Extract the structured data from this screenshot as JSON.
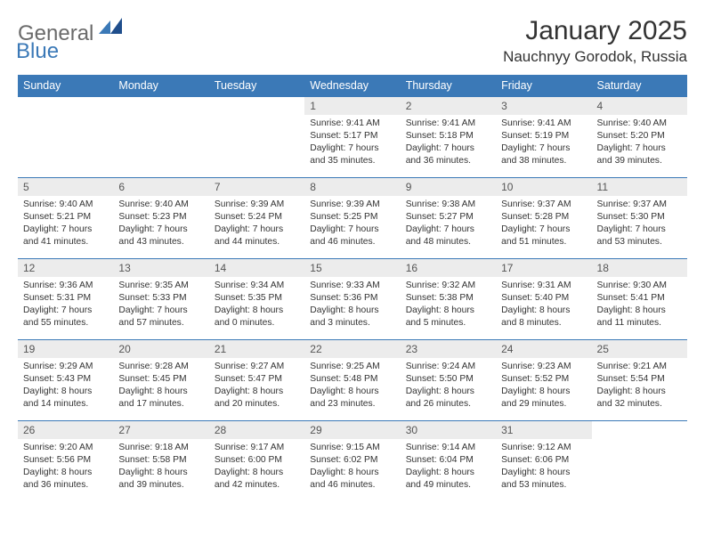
{
  "brand": {
    "general": "General",
    "blue": "Blue"
  },
  "title": "January 2025",
  "location": "Nauchnyy Gorodok, Russia",
  "theme": {
    "header_bg": "#3b79b7",
    "header_fg": "#ffffff",
    "daynum_bg": "#ececec",
    "border_color": "#3b79b7",
    "page_bg": "#ffffff",
    "text_color": "#333333"
  },
  "weekdays": [
    "Sunday",
    "Monday",
    "Tuesday",
    "Wednesday",
    "Thursday",
    "Friday",
    "Saturday"
  ],
  "weeks": [
    [
      {
        "n": "",
        "sr": "",
        "ss": "",
        "d1": "",
        "d2": "",
        "empty": true
      },
      {
        "n": "",
        "sr": "",
        "ss": "",
        "d1": "",
        "d2": "",
        "empty": true
      },
      {
        "n": "",
        "sr": "",
        "ss": "",
        "d1": "",
        "d2": "",
        "empty": true
      },
      {
        "n": "1",
        "sr": "Sunrise: 9:41 AM",
        "ss": "Sunset: 5:17 PM",
        "d1": "Daylight: 7 hours",
        "d2": "and 35 minutes."
      },
      {
        "n": "2",
        "sr": "Sunrise: 9:41 AM",
        "ss": "Sunset: 5:18 PM",
        "d1": "Daylight: 7 hours",
        "d2": "and 36 minutes."
      },
      {
        "n": "3",
        "sr": "Sunrise: 9:41 AM",
        "ss": "Sunset: 5:19 PM",
        "d1": "Daylight: 7 hours",
        "d2": "and 38 minutes."
      },
      {
        "n": "4",
        "sr": "Sunrise: 9:40 AM",
        "ss": "Sunset: 5:20 PM",
        "d1": "Daylight: 7 hours",
        "d2": "and 39 minutes."
      }
    ],
    [
      {
        "n": "5",
        "sr": "Sunrise: 9:40 AM",
        "ss": "Sunset: 5:21 PM",
        "d1": "Daylight: 7 hours",
        "d2": "and 41 minutes."
      },
      {
        "n": "6",
        "sr": "Sunrise: 9:40 AM",
        "ss": "Sunset: 5:23 PM",
        "d1": "Daylight: 7 hours",
        "d2": "and 43 minutes."
      },
      {
        "n": "7",
        "sr": "Sunrise: 9:39 AM",
        "ss": "Sunset: 5:24 PM",
        "d1": "Daylight: 7 hours",
        "d2": "and 44 minutes."
      },
      {
        "n": "8",
        "sr": "Sunrise: 9:39 AM",
        "ss": "Sunset: 5:25 PM",
        "d1": "Daylight: 7 hours",
        "d2": "and 46 minutes."
      },
      {
        "n": "9",
        "sr": "Sunrise: 9:38 AM",
        "ss": "Sunset: 5:27 PM",
        "d1": "Daylight: 7 hours",
        "d2": "and 48 minutes."
      },
      {
        "n": "10",
        "sr": "Sunrise: 9:37 AM",
        "ss": "Sunset: 5:28 PM",
        "d1": "Daylight: 7 hours",
        "d2": "and 51 minutes."
      },
      {
        "n": "11",
        "sr": "Sunrise: 9:37 AM",
        "ss": "Sunset: 5:30 PM",
        "d1": "Daylight: 7 hours",
        "d2": "and 53 minutes."
      }
    ],
    [
      {
        "n": "12",
        "sr": "Sunrise: 9:36 AM",
        "ss": "Sunset: 5:31 PM",
        "d1": "Daylight: 7 hours",
        "d2": "and 55 minutes."
      },
      {
        "n": "13",
        "sr": "Sunrise: 9:35 AM",
        "ss": "Sunset: 5:33 PM",
        "d1": "Daylight: 7 hours",
        "d2": "and 57 minutes."
      },
      {
        "n": "14",
        "sr": "Sunrise: 9:34 AM",
        "ss": "Sunset: 5:35 PM",
        "d1": "Daylight: 8 hours",
        "d2": "and 0 minutes."
      },
      {
        "n": "15",
        "sr": "Sunrise: 9:33 AM",
        "ss": "Sunset: 5:36 PM",
        "d1": "Daylight: 8 hours",
        "d2": "and 3 minutes."
      },
      {
        "n": "16",
        "sr": "Sunrise: 9:32 AM",
        "ss": "Sunset: 5:38 PM",
        "d1": "Daylight: 8 hours",
        "d2": "and 5 minutes."
      },
      {
        "n": "17",
        "sr": "Sunrise: 9:31 AM",
        "ss": "Sunset: 5:40 PM",
        "d1": "Daylight: 8 hours",
        "d2": "and 8 minutes."
      },
      {
        "n": "18",
        "sr": "Sunrise: 9:30 AM",
        "ss": "Sunset: 5:41 PM",
        "d1": "Daylight: 8 hours",
        "d2": "and 11 minutes."
      }
    ],
    [
      {
        "n": "19",
        "sr": "Sunrise: 9:29 AM",
        "ss": "Sunset: 5:43 PM",
        "d1": "Daylight: 8 hours",
        "d2": "and 14 minutes."
      },
      {
        "n": "20",
        "sr": "Sunrise: 9:28 AM",
        "ss": "Sunset: 5:45 PM",
        "d1": "Daylight: 8 hours",
        "d2": "and 17 minutes."
      },
      {
        "n": "21",
        "sr": "Sunrise: 9:27 AM",
        "ss": "Sunset: 5:47 PM",
        "d1": "Daylight: 8 hours",
        "d2": "and 20 minutes."
      },
      {
        "n": "22",
        "sr": "Sunrise: 9:25 AM",
        "ss": "Sunset: 5:48 PM",
        "d1": "Daylight: 8 hours",
        "d2": "and 23 minutes."
      },
      {
        "n": "23",
        "sr": "Sunrise: 9:24 AM",
        "ss": "Sunset: 5:50 PM",
        "d1": "Daylight: 8 hours",
        "d2": "and 26 minutes."
      },
      {
        "n": "24",
        "sr": "Sunrise: 9:23 AM",
        "ss": "Sunset: 5:52 PM",
        "d1": "Daylight: 8 hours",
        "d2": "and 29 minutes."
      },
      {
        "n": "25",
        "sr": "Sunrise: 9:21 AM",
        "ss": "Sunset: 5:54 PM",
        "d1": "Daylight: 8 hours",
        "d2": "and 32 minutes."
      }
    ],
    [
      {
        "n": "26",
        "sr": "Sunrise: 9:20 AM",
        "ss": "Sunset: 5:56 PM",
        "d1": "Daylight: 8 hours",
        "d2": "and 36 minutes."
      },
      {
        "n": "27",
        "sr": "Sunrise: 9:18 AM",
        "ss": "Sunset: 5:58 PM",
        "d1": "Daylight: 8 hours",
        "d2": "and 39 minutes."
      },
      {
        "n": "28",
        "sr": "Sunrise: 9:17 AM",
        "ss": "Sunset: 6:00 PM",
        "d1": "Daylight: 8 hours",
        "d2": "and 42 minutes."
      },
      {
        "n": "29",
        "sr": "Sunrise: 9:15 AM",
        "ss": "Sunset: 6:02 PM",
        "d1": "Daylight: 8 hours",
        "d2": "and 46 minutes."
      },
      {
        "n": "30",
        "sr": "Sunrise: 9:14 AM",
        "ss": "Sunset: 6:04 PM",
        "d1": "Daylight: 8 hours",
        "d2": "and 49 minutes."
      },
      {
        "n": "31",
        "sr": "Sunrise: 9:12 AM",
        "ss": "Sunset: 6:06 PM",
        "d1": "Daylight: 8 hours",
        "d2": "and 53 minutes."
      },
      {
        "n": "",
        "sr": "",
        "ss": "",
        "d1": "",
        "d2": "",
        "empty": true
      }
    ]
  ]
}
